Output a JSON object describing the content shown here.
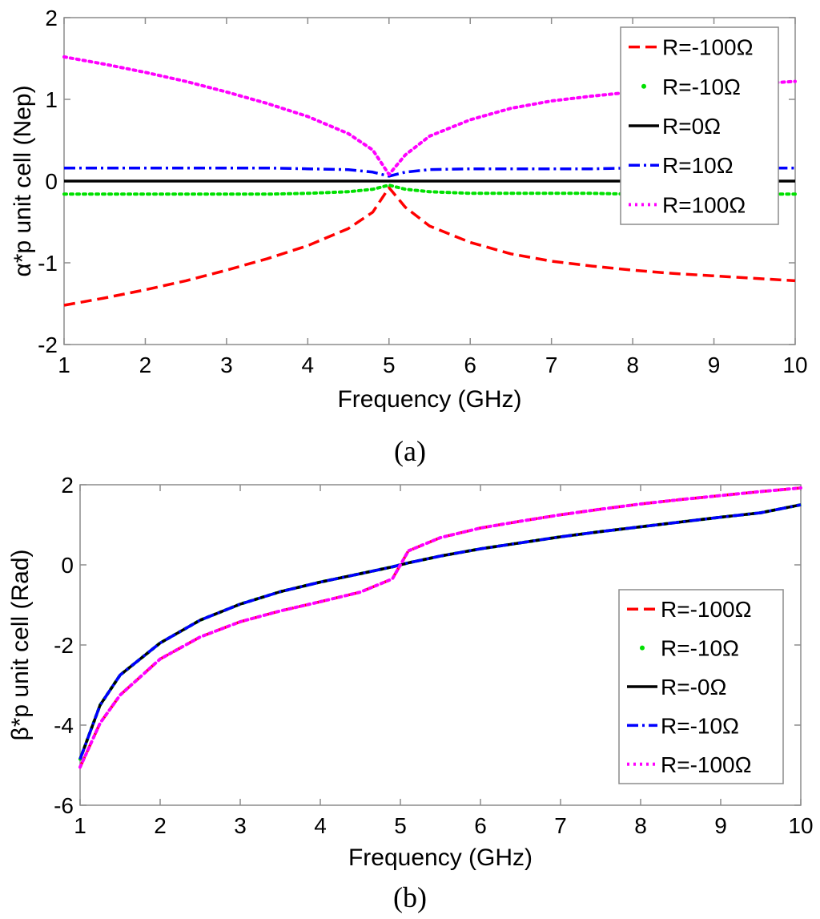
{
  "chart_data": [
    {
      "type": "line",
      "panel": "a",
      "caption": "(a)",
      "xlabel": "Frequency (GHz)",
      "ylabel": "α*p unit cell (Nep)",
      "xlim": [
        1,
        10
      ],
      "ylim": [
        -2,
        2
      ],
      "xticks": [
        "1",
        "2",
        "3",
        "4",
        "5",
        "6",
        "7",
        "8",
        "9",
        "10"
      ],
      "yticks": [
        "-2",
        "-1",
        "0",
        "1",
        "2"
      ],
      "legend_position": "top-right",
      "x": [
        1,
        1.5,
        2,
        2.5,
        3,
        3.5,
        4,
        4.5,
        4.8,
        5,
        5.2,
        5.5,
        6,
        6.5,
        7,
        7.5,
        8,
        8.5,
        9,
        9.5,
        10
      ],
      "series": [
        {
          "name": "R=-100Ω",
          "color": "#ff0000",
          "style": "dashed",
          "values": [
            -1.52,
            -1.43,
            -1.33,
            -1.22,
            -1.09,
            -0.95,
            -0.79,
            -0.58,
            -0.38,
            -0.08,
            -0.32,
            -0.55,
            -0.75,
            -0.89,
            -0.98,
            -1.04,
            -1.09,
            -1.13,
            -1.16,
            -1.19,
            -1.22
          ]
        },
        {
          "name": "R=-10Ω",
          "color": "#00e000",
          "style": "dotted",
          "values": [
            -0.16,
            -0.16,
            -0.16,
            -0.16,
            -0.16,
            -0.16,
            -0.15,
            -0.13,
            -0.1,
            -0.05,
            -0.1,
            -0.13,
            -0.15,
            -0.15,
            -0.15,
            -0.15,
            -0.16,
            -0.16,
            -0.16,
            -0.16,
            -0.16
          ]
        },
        {
          "name": "R=0Ω",
          "color": "#000000",
          "style": "solid",
          "values": [
            0,
            0,
            0,
            0,
            0,
            0,
            0,
            0,
            0,
            0,
            0,
            0,
            0,
            0,
            0,
            0,
            0,
            0,
            0,
            0,
            0
          ]
        },
        {
          "name": "R=10Ω",
          "color": "#0000ff",
          "style": "dashdot",
          "values": [
            0.16,
            0.16,
            0.16,
            0.16,
            0.16,
            0.16,
            0.15,
            0.14,
            0.11,
            0.06,
            0.11,
            0.14,
            0.15,
            0.15,
            0.15,
            0.15,
            0.16,
            0.16,
            0.16,
            0.16,
            0.16
          ]
        },
        {
          "name": "R=100Ω",
          "color": "#ff00ff",
          "style": "dotted",
          "values": [
            1.52,
            1.43,
            1.33,
            1.22,
            1.09,
            0.95,
            0.79,
            0.58,
            0.38,
            0.08,
            0.32,
            0.55,
            0.75,
            0.89,
            0.98,
            1.04,
            1.09,
            1.13,
            1.16,
            1.19,
            1.22
          ]
        }
      ]
    },
    {
      "type": "line",
      "panel": "b",
      "caption": "(b)",
      "xlabel": "Frequency (GHz)",
      "ylabel": "β*p unit cell (Rad)",
      "xlim": [
        1,
        10
      ],
      "ylim": [
        -6,
        2
      ],
      "xticks": [
        "1",
        "2",
        "3",
        "4",
        "5",
        "6",
        "7",
        "8",
        "9",
        "10"
      ],
      "yticks": [
        "-6",
        "-4",
        "-2",
        "0",
        "2"
      ],
      "legend_position": "bottom-right",
      "x": [
        1,
        1.25,
        1.5,
        2,
        2.5,
        3,
        3.5,
        4,
        4.5,
        4.9,
        5,
        5.1,
        5.5,
        6,
        6.5,
        7,
        7.5,
        8,
        8.5,
        9,
        9.5,
        10
      ],
      "series": [
        {
          "name": "R=-100Ω",
          "color": "#ff0000",
          "style": "dashed",
          "values": [
            -5.05,
            -3.95,
            -3.25,
            -2.35,
            -1.8,
            -1.42,
            -1.15,
            -0.92,
            -0.68,
            -0.35,
            0,
            0.35,
            0.68,
            0.92,
            1.09,
            1.25,
            1.39,
            1.52,
            1.63,
            1.73,
            1.83,
            1.92
          ]
        },
        {
          "name": "R=-10Ω",
          "color": "#00e000",
          "style": "dotted",
          "values": [
            -4.85,
            -3.5,
            -2.75,
            -1.95,
            -1.38,
            -0.98,
            -0.67,
            -0.43,
            -0.22,
            -0.05,
            0,
            0.05,
            0.22,
            0.4,
            0.55,
            0.7,
            0.83,
            0.95,
            1.07,
            1.19,
            1.3,
            1.5
          ]
        },
        {
          "name": "R=-0Ω",
          "color": "#000000",
          "style": "solid",
          "values": [
            -4.85,
            -3.5,
            -2.75,
            -1.95,
            -1.38,
            -0.98,
            -0.67,
            -0.43,
            -0.22,
            -0.05,
            0,
            0.05,
            0.22,
            0.4,
            0.55,
            0.7,
            0.83,
            0.95,
            1.07,
            1.19,
            1.3,
            1.5
          ]
        },
        {
          "name": "R=-10Ω",
          "color": "#0000ff",
          "style": "dashdot",
          "values": [
            -4.85,
            -3.5,
            -2.75,
            -1.95,
            -1.38,
            -0.98,
            -0.67,
            -0.43,
            -0.22,
            -0.05,
            0,
            0.05,
            0.22,
            0.4,
            0.55,
            0.7,
            0.83,
            0.95,
            1.07,
            1.19,
            1.3,
            1.5
          ]
        },
        {
          "name": "R=-100Ω",
          "color": "#ff00ff",
          "style": "dotted",
          "values": [
            -5.05,
            -3.95,
            -3.25,
            -2.35,
            -1.8,
            -1.42,
            -1.15,
            -0.92,
            -0.68,
            -0.35,
            0,
            0.35,
            0.68,
            0.92,
            1.09,
            1.25,
            1.39,
            1.52,
            1.63,
            1.73,
            1.83,
            1.92
          ]
        }
      ]
    }
  ]
}
